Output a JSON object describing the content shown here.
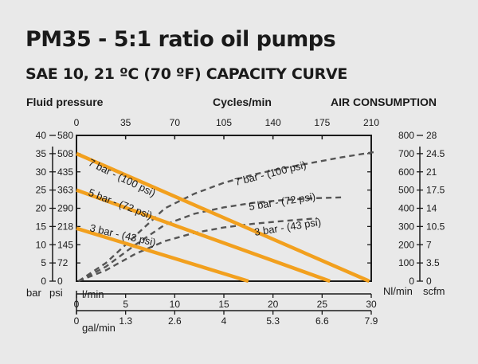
{
  "title": "PM35 - 5:1 ratio oil pumps",
  "subtitle": "SAE 10, 21 ºC (70 ºF) CAPACITY CURVE",
  "colors": {
    "fluid_line": "#f2a01e",
    "air_line": "#555555",
    "axis": "#1a1a1a",
    "background": "#e9e9e9"
  },
  "chart_data": {
    "type": "line",
    "header_left": "Fluid pressure",
    "header_center": "Cycles/min",
    "header_right": "AIR CONSUMPTION",
    "top_axis": {
      "title": "Cycles/min",
      "ticks": [
        "0",
        "35",
        "70",
        "105",
        "140",
        "175",
        "210"
      ],
      "range": [
        0,
        210
      ]
    },
    "bottom_axis_primary": {
      "unit": "l/min",
      "ticks": [
        "0",
        "5",
        "10",
        "15",
        "20",
        "25",
        "30"
      ],
      "range": [
        0,
        30
      ]
    },
    "bottom_axis_secondary": {
      "unit": "gal/min",
      "ticks": [
        "0",
        "1.3",
        "2.6",
        "4",
        "5.3",
        "6.6",
        "7.9"
      ]
    },
    "left_axis_bar": {
      "unit": "bar",
      "ticks": [
        "0",
        "5",
        "10",
        "15",
        "20",
        "25",
        "30",
        "35",
        "40"
      ],
      "range": [
        0,
        40
      ]
    },
    "left_axis_psi": {
      "unit": "psi",
      "ticks": [
        "0",
        "72",
        "145",
        "218",
        "290",
        "363",
        "435",
        "508",
        "580"
      ]
    },
    "right_axis_nl": {
      "unit": "Nl/min",
      "ticks": [
        "0",
        "100",
        "200",
        "300",
        "400",
        "500",
        "600",
        "700",
        "800"
      ],
      "range": [
        0,
        800
      ]
    },
    "right_axis_scfm": {
      "unit": "scfm",
      "ticks": [
        "0",
        "3.5",
        "7",
        "10.5",
        "14",
        "17.5",
        "21",
        "24.5",
        "28"
      ]
    },
    "fluid_series": [
      {
        "name": "7 bar - (100 psi)",
        "x_lpm": [
          0,
          29.8
        ],
        "y_bar": [
          35,
          0
        ]
      },
      {
        "name": "5 bar - (72 psi)",
        "x_lpm": [
          0,
          25.8
        ],
        "y_bar": [
          25,
          0
        ]
      },
      {
        "name": "3 bar - (43 psi)",
        "x_lpm": [
          0,
          17.5
        ],
        "y_bar": [
          14.5,
          0
        ]
      }
    ],
    "air_series": [
      {
        "name": "7 bar - (100 psi)",
        "x_lpm": [
          0.2,
          3,
          6,
          9,
          12,
          15,
          18,
          21,
          24,
          27,
          30.5
        ],
        "y_nlmin": [
          0,
          100,
          250,
          400,
          480,
          540,
          585,
          620,
          650,
          680,
          710
        ]
      },
      {
        "name": "5 bar - (72 psi)",
        "x_lpm": [
          0.2,
          3,
          6,
          9,
          12,
          15,
          18,
          21,
          24,
          27
        ],
        "y_nlmin": [
          0,
          80,
          200,
          310,
          370,
          405,
          430,
          445,
          455,
          460
        ]
      },
      {
        "name": "3 bar - (43 psi)",
        "x_lpm": [
          0.2,
          3,
          6,
          9,
          12,
          15,
          18,
          21,
          24.5
        ],
        "y_nlmin": [
          0,
          60,
          150,
          220,
          265,
          295,
          315,
          330,
          345
        ]
      }
    ],
    "grid": false
  }
}
